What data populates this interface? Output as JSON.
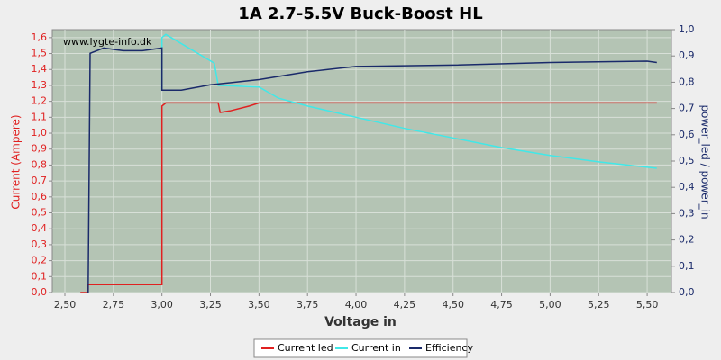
{
  "chart_data": {
    "type": "line",
    "title": "1A 2.7-5.5V Buck-Boost HL",
    "watermark": "www.lygte-info.dk",
    "xlabel": "Voltage in",
    "ylabel": "Current (Ampere)",
    "y2label": "power_led / power_in",
    "xlim": [
      2.435,
      5.625
    ],
    "ylim": [
      0,
      1.65
    ],
    "y2lim": [
      0,
      1.0
    ],
    "grid": true,
    "legend": "bottom",
    "xticks": [
      {
        "value": 2.5,
        "label": "2,50"
      },
      {
        "value": 2.75,
        "label": "2,75"
      },
      {
        "value": 3.0,
        "label": "3,00"
      },
      {
        "value": 3.25,
        "label": "3,25"
      },
      {
        "value": 3.5,
        "label": "3,50"
      },
      {
        "value": 3.75,
        "label": "3,75"
      },
      {
        "value": 4.0,
        "label": "4,00"
      },
      {
        "value": 4.25,
        "label": "4,25"
      },
      {
        "value": 4.5,
        "label": "4,50"
      },
      {
        "value": 4.75,
        "label": "4,75"
      },
      {
        "value": 5.0,
        "label": "5,00"
      },
      {
        "value": 5.25,
        "label": "5,25"
      },
      {
        "value": 5.5,
        "label": "5,50"
      }
    ],
    "yticks": [
      {
        "value": 0,
        "label": "0,0"
      },
      {
        "value": 0.1,
        "label": "0,1"
      },
      {
        "value": 0.2,
        "label": "0,2"
      },
      {
        "value": 0.3,
        "label": "0,3"
      },
      {
        "value": 0.4,
        "label": "0,4"
      },
      {
        "value": 0.5,
        "label": "0,5"
      },
      {
        "value": 0.6,
        "label": "0,6"
      },
      {
        "value": 0.7,
        "label": "0,7"
      },
      {
        "value": 0.8,
        "label": "0,8"
      },
      {
        "value": 0.9,
        "label": "0,9"
      },
      {
        "value": 1.0,
        "label": "1,0"
      },
      {
        "value": 1.1,
        "label": "1,1"
      },
      {
        "value": 1.2,
        "label": "1,2"
      },
      {
        "value": 1.3,
        "label": "1,3"
      },
      {
        "value": 1.4,
        "label": "1,4"
      },
      {
        "value": 1.5,
        "label": "1,5"
      },
      {
        "value": 1.6,
        "label": "1,6"
      }
    ],
    "y2ticks": [
      {
        "value": 0,
        "label": "0,0"
      },
      {
        "value": 0.1,
        "label": "0,1"
      },
      {
        "value": 0.2,
        "label": "0,2"
      },
      {
        "value": 0.3,
        "label": "0,3"
      },
      {
        "value": 0.4,
        "label": "0,4"
      },
      {
        "value": 0.5,
        "label": "0,5"
      },
      {
        "value": 0.6,
        "label": "0,6"
      },
      {
        "value": 0.7,
        "label": "0,7"
      },
      {
        "value": 0.8,
        "label": "0,8"
      },
      {
        "value": 0.9,
        "label": "0,9"
      },
      {
        "value": 1.0,
        "label": "1,0"
      }
    ],
    "series": [
      {
        "name": "Current led",
        "color": "#e02020",
        "x": [
          2.58,
          2.62,
          2.62,
          3.0,
          3.0,
          3.02,
          3.29,
          3.3,
          3.35,
          3.45,
          3.5,
          4.0,
          4.5,
          5.0,
          5.3,
          5.55
        ],
        "values": [
          0,
          0,
          0.05,
          0.05,
          1.17,
          1.19,
          1.19,
          1.13,
          1.14,
          1.17,
          1.19,
          1.19,
          1.19,
          1.19,
          1.19,
          1.19
        ]
      },
      {
        "name": "Current in",
        "color": "#40e8e8",
        "x": [
          3.0,
          3.0,
          3.02,
          3.27,
          3.29,
          3.5,
          3.6,
          3.75,
          4.0,
          4.25,
          4.5,
          4.75,
          5.0,
          5.25,
          5.55
        ],
        "values": [
          1.27,
          1.6,
          1.62,
          1.44,
          1.3,
          1.29,
          1.22,
          1.17,
          1.1,
          1.03,
          0.97,
          0.91,
          0.86,
          0.82,
          0.78
        ]
      },
      {
        "name": "Efficiency",
        "color": "#1a2a6a",
        "axis": "y2",
        "x": [
          2.62,
          2.63,
          2.7,
          2.8,
          2.9,
          3.0,
          3.0,
          3.1,
          3.25,
          3.5,
          3.75,
          4.0,
          4.5,
          5.0,
          5.5,
          5.55
        ],
        "values": [
          0,
          0.91,
          0.93,
          0.92,
          0.92,
          0.93,
          0.77,
          0.77,
          0.79,
          0.81,
          0.84,
          0.86,
          0.865,
          0.875,
          0.88,
          0.875
        ]
      }
    ]
  }
}
